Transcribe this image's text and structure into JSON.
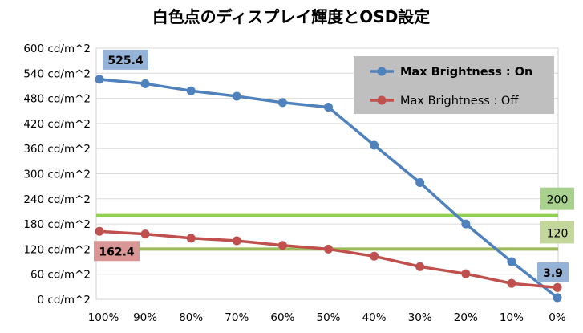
{
  "chart_data": {
    "type": "line",
    "title": "白色点のディスプレイ輝度とOSD設定",
    "xlabel": "",
    "ylabel": "",
    "categories": [
      "100%",
      "90%",
      "80%",
      "70%",
      "60%",
      "50%",
      "40%",
      "30%",
      "20%",
      "10%",
      "0%"
    ],
    "ylim": [
      0,
      600
    ],
    "ytick_step": 60,
    "ytick_labels": [
      "0 cd/m^2",
      "60 cd/m^2",
      "120 cd/m^2",
      "180 cd/m^2",
      "240 cd/m^2",
      "300 cd/m^2",
      "360 cd/m^2",
      "420 cd/m^2",
      "480 cd/m^2",
      "540 cd/m^2",
      "600 cd/m^2"
    ],
    "grid": "horizontal",
    "legend_position": "top-right",
    "series": [
      {
        "name": "Max Brightness : On",
        "color": "#4f81bd",
        "values": [
          525.4,
          515,
          498,
          485,
          470,
          459,
          368,
          279,
          180,
          90,
          3.9
        ]
      },
      {
        "name": "Max Brightness : Off",
        "color": "#c0504d",
        "values": [
          162.4,
          156,
          146,
          140,
          129,
          120,
          103,
          78,
          61,
          38,
          28
        ]
      }
    ],
    "reference_lines": [
      {
        "value": 200,
        "label": "200",
        "color": "#92d050",
        "label_bg": "#a9d18e"
      },
      {
        "value": 120,
        "label": "120",
        "color": "#9bbb59",
        "label_bg": "#c4d79b"
      }
    ],
    "annotations": [
      {
        "series": 0,
        "index": 0,
        "text": "525.4",
        "bg": "#95b3d7"
      },
      {
        "series": 0,
        "index": 10,
        "text": "3.9",
        "bg": "#95b3d7"
      },
      {
        "series": 1,
        "index": 0,
        "text": "162.4",
        "bg": "#da9694"
      }
    ]
  }
}
